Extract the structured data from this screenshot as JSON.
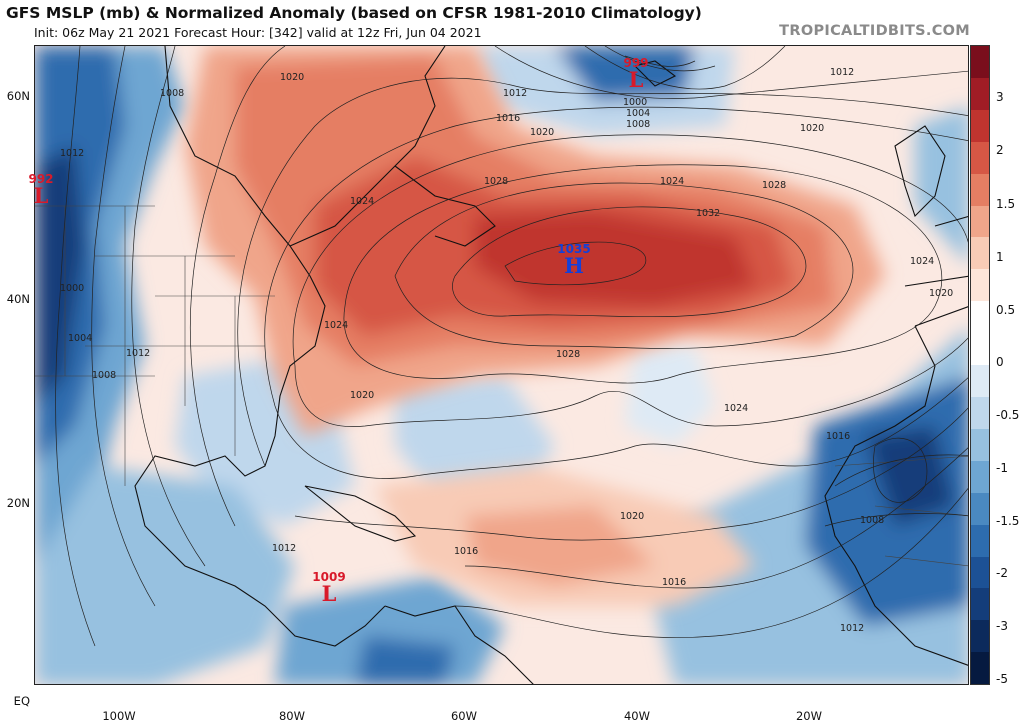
{
  "header": {
    "title": "GFS MSLP (mb) & Normalized Anomaly (based on CFSR 1981-2010 Climatology)",
    "subtitle": "Init: 06z May 21 2021   Forecast Hour: [342]   valid at 12z Fri, Jun 04 2021",
    "brand": "TROPICALTIDBITS.COM"
  },
  "axes": {
    "lat_labels": [
      "60N",
      "40N",
      "20N",
      "EQ"
    ],
    "lon_labels": [
      "100W",
      "80W",
      "60W",
      "40W",
      "20W"
    ]
  },
  "colorbar": {
    "ticks": [
      "3",
      "2",
      "1.5",
      "1",
      "0.5",
      "0",
      "-0.5",
      "-1",
      "-1.5",
      "-2",
      "-3",
      "-5"
    ],
    "colors": [
      "#7a0e1c",
      "#a01c25",
      "#c0342f",
      "#d65745",
      "#e57e63",
      "#f0a58a",
      "#f8cbb6",
      "#fde6da",
      "#ffffff",
      "#ffffff",
      "#deeaf5",
      "#bfd7ec",
      "#97c1e0",
      "#6ea6d2",
      "#4a89c1",
      "#2d6cae",
      "#1c5195",
      "#143d7a",
      "#0c2a5c",
      "#061a40"
    ]
  },
  "systems": [
    {
      "label": "L",
      "value": "999",
      "color": "#d81a2a"
    },
    {
      "label": "L",
      "value": "992",
      "color": "#d81a2a"
    },
    {
      "label": "H",
      "value": "1035",
      "color": "#1440d8"
    },
    {
      "label": "L",
      "value": "1009",
      "color": "#d81a2a"
    }
  ],
  "isobar_labels": [
    "1020",
    "1008",
    "1012",
    "1016",
    "1020",
    "1012",
    "1000",
    "1004",
    "1008",
    "1012",
    "1020",
    "1024",
    "1028",
    "1024",
    "1032",
    "1028",
    "1024",
    "1024",
    "1028",
    "1020",
    "1016",
    "1020",
    "1016",
    "1012",
    "1008",
    "1000",
    "1004",
    "1008",
    "1012",
    "1016",
    "1012",
    "1020",
    "1024"
  ]
}
